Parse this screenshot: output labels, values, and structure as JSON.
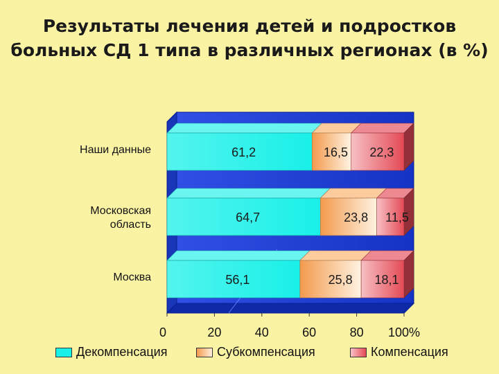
{
  "title_lines": [
    "Результаты лечения детей и подростков",
    "больных СД 1 типа в различных регионах (в %)"
  ],
  "colors": {
    "background": "#fbf3a4",
    "wall": "#1f3fd6",
    "wall_edge": "#0a1f8f",
    "decompensation": "#19f0e8",
    "subcompensation": "#fcb06a",
    "compensation": "#e44a55"
  },
  "chart_data": {
    "type": "bar",
    "orientation": "horizontal",
    "stacked": "percent",
    "three_d": true,
    "title": "Результаты лечения детей и подростков больных СД 1 типа в различных регионах (в %)",
    "categories": [
      "Наши данные",
      "Московская область",
      "Москва"
    ],
    "category_lines": [
      [
        "Наши данные"
      ],
      [
        "Московская",
        "область"
      ],
      [
        "Москва"
      ]
    ],
    "series": [
      {
        "name": "Декомпенсация",
        "values": [
          61.2,
          64.7,
          56.1
        ],
        "labels": [
          "61,2",
          "64,7",
          "56,1"
        ],
        "color": "#19f0e8"
      },
      {
        "name": "Субкомпенсация",
        "values": [
          16.5,
          23.8,
          25.8
        ],
        "labels": [
          "16,5",
          "23,8",
          "25,8"
        ],
        "color": "#fcb06a"
      },
      {
        "name": "Компенсация",
        "values": [
          22.3,
          11.5,
          18.1
        ],
        "labels": [
          "22,3",
          "11,5",
          "18,1"
        ],
        "color": "#e44a55"
      }
    ],
    "x_ticks": [
      "0",
      "20",
      "40",
      "60",
      "80",
      "100%"
    ],
    "xlim": [
      0,
      100
    ],
    "legend_position": "bottom"
  }
}
